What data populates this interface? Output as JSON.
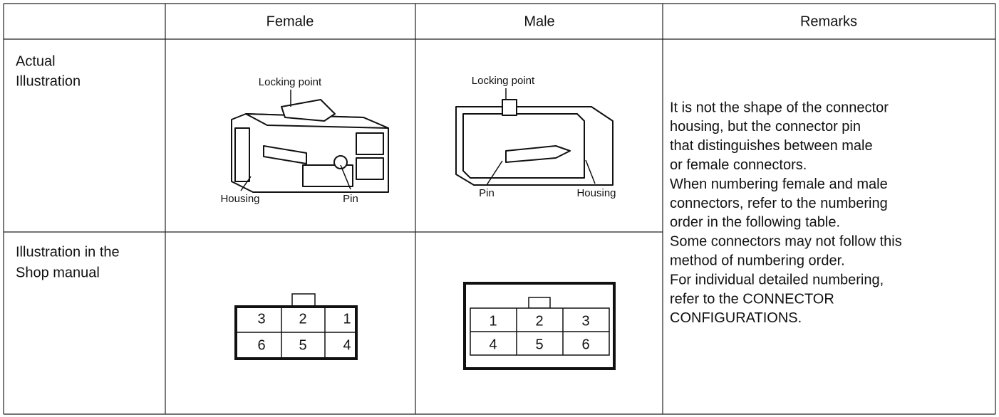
{
  "table": {
    "columns": [
      "Female",
      "Male",
      "Remarks"
    ],
    "rows": [
      {
        "label": [
          "Actual",
          "Illustration"
        ],
        "female": {
          "locking_point": "Locking point",
          "housing": "Housing",
          "pin": "Pin"
        },
        "male": {
          "locking_point": "Locking point",
          "pin": "Pin",
          "housing": "Housing"
        }
      },
      {
        "label": [
          "Illustration in the",
          "Shop manual"
        ],
        "female": {
          "pins": [
            [
              3,
              2,
              1
            ],
            [
              6,
              5,
              4
            ]
          ]
        },
        "male": {
          "pins": [
            [
              1,
              2,
              3
            ],
            [
              4,
              5,
              6
            ]
          ]
        }
      }
    ],
    "remarks": [
      "It is not the shape of the connector",
      "housing, but the connector pin",
      "that distinguishes between male",
      "or female connectors.",
      "When numbering female and male",
      "connectors, refer to the numbering",
      "order in the following table.",
      "Some connectors may not follow this",
      "method of numbering order.",
      "For individual detailed numbering,",
      "refer to the CONNECTOR",
      "CONFIGURATIONS."
    ]
  }
}
